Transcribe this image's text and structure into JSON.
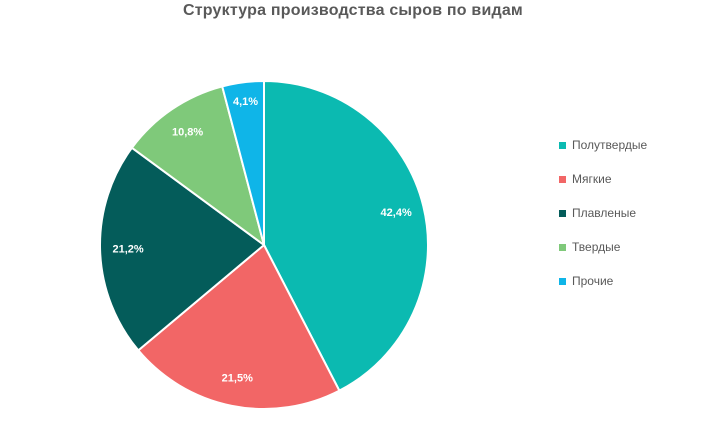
{
  "chart_data": {
    "type": "pie",
    "title": "Структура производства  сыров  по видам",
    "categories": [
      "Полутвердые",
      "Мягкие",
      "Плавленые",
      "Твердые",
      "Прочие"
    ],
    "values": [
      42.4,
      21.5,
      21.2,
      10.8,
      4.1
    ],
    "data_labels": [
      "42,4%",
      "21,5%",
      "21,2%",
      "10,8%",
      "4,1%"
    ],
    "colors": [
      "#0bbab1",
      "#f26666",
      "#045c5a",
      "#7fc97a",
      "#0fb5e8"
    ],
    "legend_position": "right",
    "start_angle": "top, clockwise"
  }
}
